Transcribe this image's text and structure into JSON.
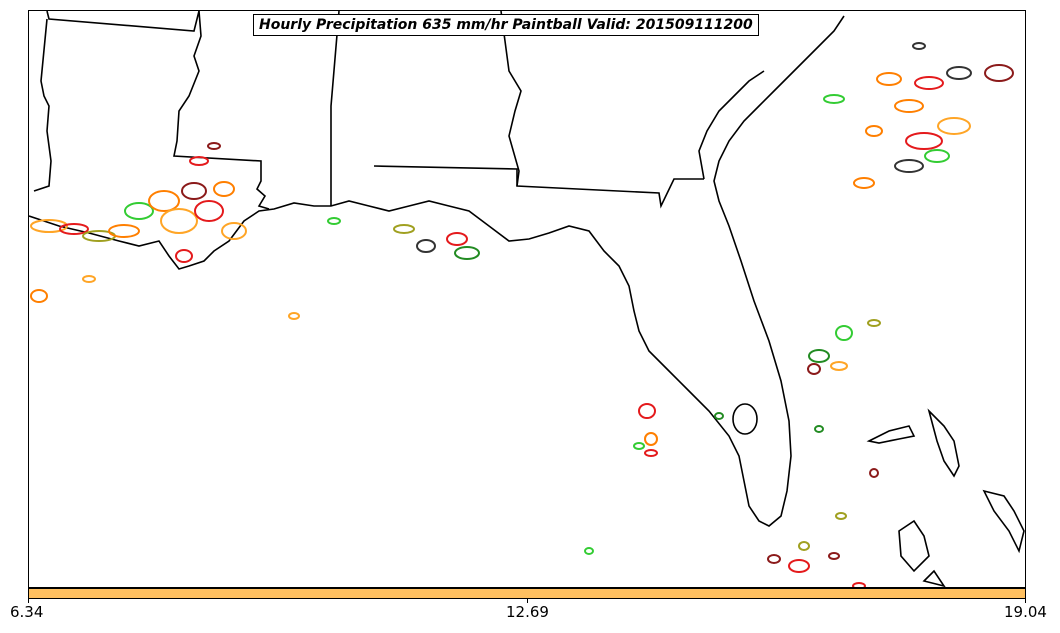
{
  "title": "Hourly Precipitation 635 mm/hr Paintball Valid: 201509111200",
  "colorbar": {
    "color": "#ffc060",
    "ticks": [
      "6.34",
      "12.69",
      "19.04"
    ]
  },
  "map": {
    "region": "US Gulf Coast / Florida",
    "land_border_color": "#000000",
    "background": "#ffffff"
  },
  "paintball_colors": [
    "#e41a1c",
    "#ff7f00",
    "#ffa526",
    "#33cc33",
    "#228b22",
    "#8b1a1a",
    "#333333",
    "#a0a020"
  ]
}
